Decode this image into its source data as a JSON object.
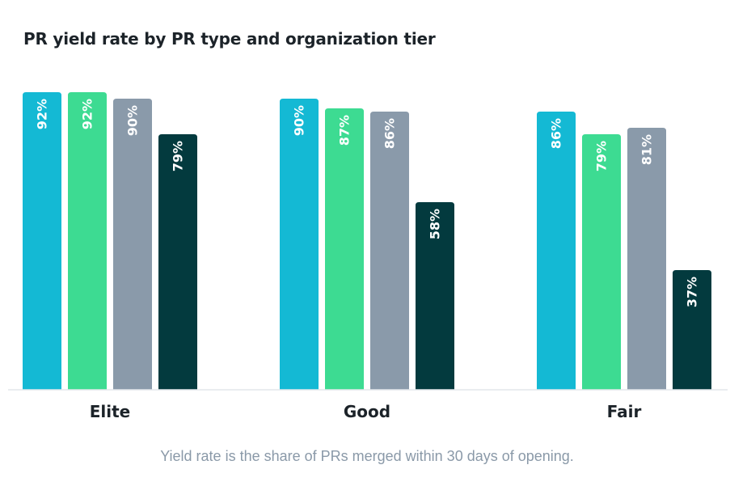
{
  "chart_data": {
    "type": "bar",
    "title": "PR yield rate by PR type and organization tier",
    "categories": [
      "Elite",
      "Good",
      "Fair"
    ],
    "series": [
      {
        "color": "#14b9d4",
        "values": [
          92,
          90,
          86
        ]
      },
      {
        "color": "#3ddb92",
        "values": [
          92,
          87,
          79
        ]
      },
      {
        "color": "#8a9aaa",
        "values": [
          90,
          86,
          81
        ]
      },
      {
        "color": "#033a3e",
        "values": [
          79,
          58,
          37
        ]
      }
    ],
    "value_suffix": "%",
    "ylim": [
      0,
      100
    ],
    "grid": false,
    "footnote": "Yield rate is the share of PRs merged within 30 days of opening."
  }
}
